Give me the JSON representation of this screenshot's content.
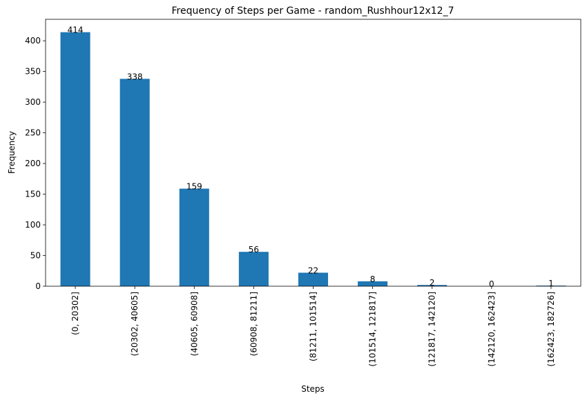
{
  "chart_data": {
    "type": "bar",
    "title": "Frequency of Steps per Game - random_Rushhour12x12_7",
    "xlabel": "Steps",
    "ylabel": "Frequency",
    "categories": [
      "(0, 20302]",
      "(20302, 40605]",
      "(40605, 60908]",
      "(60908, 81211]",
      "(81211, 101514]",
      "(101514, 121817]",
      "(121817, 142120]",
      "(142120, 162423]",
      "(162423, 182726]"
    ],
    "values": [
      414,
      338,
      159,
      56,
      22,
      8,
      2,
      0,
      1
    ],
    "ylim": [
      0,
      435
    ],
    "yticks": [
      0,
      50,
      100,
      150,
      200,
      250,
      300,
      350,
      400
    ],
    "bar_color": "#1f77b4",
    "grid": false,
    "legend": "none"
  }
}
